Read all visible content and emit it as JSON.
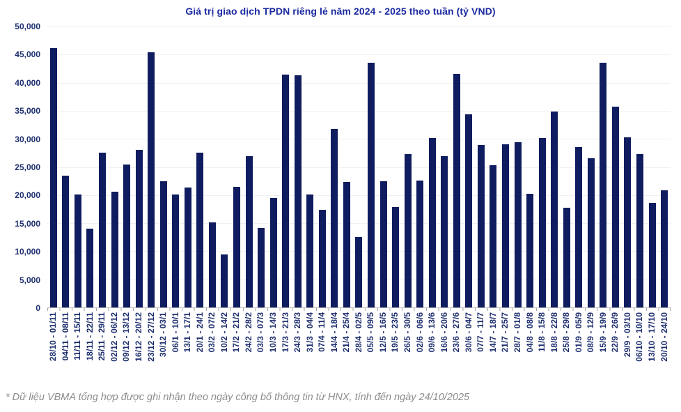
{
  "chart": {
    "title": "Giá trị giao dịch TPDN riêng lẻ năm 2024 - 2025 theo tuần (tỷ VND)"
  },
  "footnote": {
    "text": "* Dữ liệu VBMA tổng hợp được ghi nhận theo ngày công bố thông tin từ HNX, tính đến ngày 24/10/2025"
  },
  "colors": {
    "bar": "#0f1c5f",
    "title": "#1b2aa0",
    "axis_label": "#1e2f6f",
    "gridline": "#f0f0f0",
    "axis_line": "#b9b9b9",
    "footnote": "#8c8c8c"
  },
  "chart_data": {
    "type": "bar",
    "title": "Giá trị giao dịch TPDN riêng lẻ năm 2024 - 2025 theo tuần (tỷ VND)",
    "xlabel": "",
    "ylabel": "",
    "ylim": [
      0,
      50000
    ],
    "ytick_step": 5000,
    "grid": true,
    "legend": "none",
    "categories": [
      "28/10 - 01/11",
      "04/11 - 08/11",
      "11/11 - 15/11",
      "18/11 - 22/11",
      "25/11 - 29/11",
      "02/12 - 06/12",
      "09/12 - 13/12",
      "16/12 - 20/12",
      "23/12 - 27/12",
      "30/12 - 03/1",
      "06/1 - 10/1",
      "13/1 - 17/1",
      "20/1 - 24/1",
      "03/2 - 07/2",
      "10/2 - 14/2",
      "17/2 - 21/2",
      "24/2 - 28/2",
      "03/3 - 07/3",
      "10/3 - 14/3",
      "17/3 - 21/3",
      "24/3 - 28/3",
      "31/3 - 04/4",
      "07/4 - 11/4",
      "14/4 - 18/4",
      "21/4 - 25/4",
      "28/4 - 02/5",
      "05/5 - 09/5",
      "12/5 - 16/5",
      "19/5 - 23/5",
      "26/5 - 30/5",
      "02/6 - 06/6",
      "09/6 - 13/6",
      "16/6 - 20/6",
      "23/6 - 27/6",
      "30/6 - 04/7",
      "07/7 - 11/7",
      "14/7 - 18/7",
      "21/7 - 25/7",
      "28/7 - 01/8",
      "04/8 - 08/8",
      "11/8 - 15/8",
      "18/8 - 22/8",
      "25/8 - 29/8",
      "01/9 - 05/9",
      "08/9 - 12/9",
      "15/9 - 19/9",
      "22/9 - 26/9",
      "29/9 - 03/10",
      "06/10 - 10/10",
      "13/10 - 17/10",
      "20/10 - 24/10"
    ],
    "values": [
      46100,
      23500,
      20100,
      14000,
      27600,
      20600,
      25400,
      28000,
      45400,
      22500,
      20100,
      21400,
      27600,
      15100,
      9400,
      21500,
      26900,
      14200,
      19500,
      41400,
      41300,
      20100,
      17400,
      31800,
      22300,
      12500,
      43600,
      22400,
      17900,
      27300,
      22600,
      30100,
      26900,
      41600,
      34400,
      28900,
      25300,
      29000,
      29400,
      20200,
      30200,
      34900,
      17700,
      28500,
      26500,
      43600,
      35700,
      30300,
      27300,
      18600,
      20900
    ]
  }
}
